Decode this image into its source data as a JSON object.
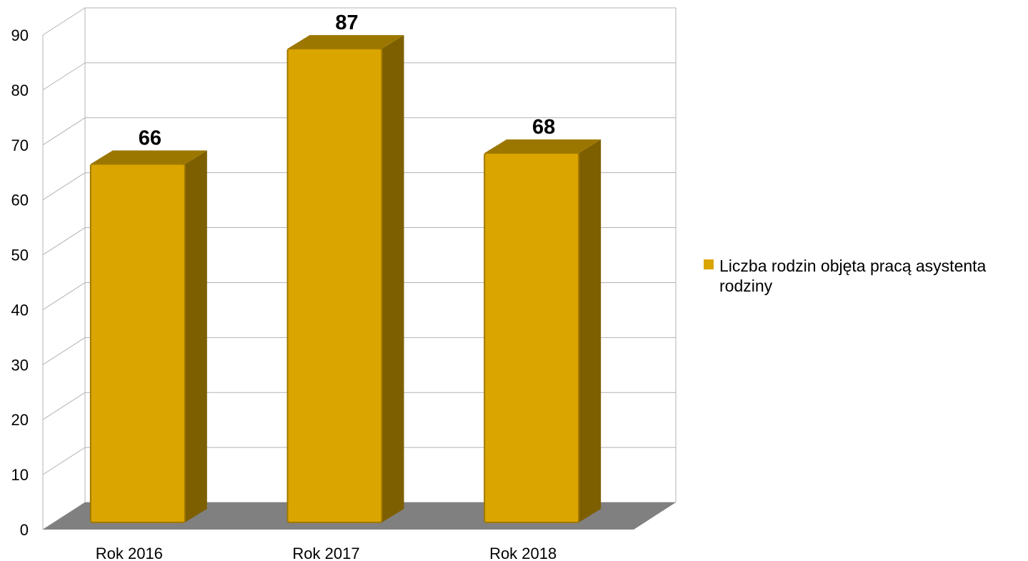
{
  "chart_data": {
    "type": "bar",
    "style": "3d",
    "categories": [
      "Rok 2016",
      "Rok 2017",
      "Rok 2018"
    ],
    "series": [
      {
        "name": "Liczba rodzin objęta pracą asystenta rodziny",
        "values": [
          66,
          87,
          68
        ]
      }
    ],
    "data_labels": [
      "66",
      "87",
      "68"
    ],
    "y_ticks": [
      "0",
      "10",
      "20",
      "30",
      "40",
      "50",
      "60",
      "70",
      "80",
      "90"
    ],
    "ylim": [
      0,
      90
    ],
    "grid": true,
    "legend_position": "right",
    "colors": {
      "bar": "#dba500",
      "bar_side": "#7d5f00",
      "bar_top": "#9c7700",
      "floor": "#808080",
      "grid": "#b3b3b3"
    }
  }
}
